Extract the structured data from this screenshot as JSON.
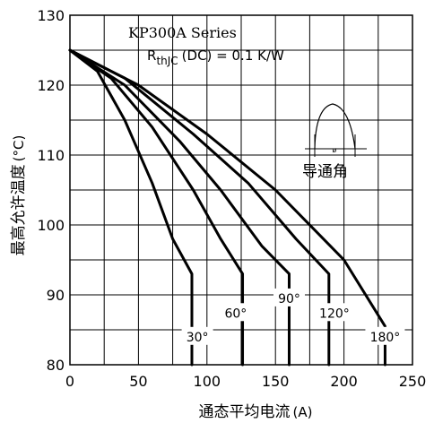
{
  "chart_data": {
    "type": "line",
    "xlabel": "通态平均电流",
    "xlabel_unit": "(A)",
    "ylabel": "最高允许温度",
    "ylabel_unit": "(°C)",
    "xlim": [
      0,
      250
    ],
    "ylim": [
      80,
      130
    ],
    "x_ticks": [
      0,
      50,
      100,
      150,
      200,
      250
    ],
    "y_ticks": [
      80,
      90,
      100,
      110,
      120,
      130
    ],
    "grid": true,
    "annotations": {
      "series_title": "KP300A Series",
      "rth_symbol": "R",
      "rth_sub": "thJC",
      "rth_rest": "(DC) = 0.1 K/W",
      "conduction_angle": "导通角"
    },
    "series": [
      {
        "label": "30°",
        "points": [
          [
            0,
            125
          ],
          [
            20,
            122
          ],
          [
            40,
            115
          ],
          [
            60,
            106
          ],
          [
            75,
            98
          ],
          [
            89,
            93
          ],
          [
            89,
            80
          ]
        ]
      },
      {
        "label": "60°",
        "points": [
          [
            0,
            125
          ],
          [
            30,
            121
          ],
          [
            60,
            114
          ],
          [
            90,
            105
          ],
          [
            110,
            98
          ],
          [
            126,
            93
          ],
          [
            126,
            80
          ]
        ]
      },
      {
        "label": "90°",
        "points": [
          [
            0,
            125
          ],
          [
            40,
            120
          ],
          [
            80,
            112
          ],
          [
            110,
            105
          ],
          [
            140,
            97
          ],
          [
            160,
            93
          ],
          [
            160,
            80
          ]
        ]
      },
      {
        "label": "120°",
        "points": [
          [
            0,
            125
          ],
          [
            40,
            121
          ],
          [
            90,
            113
          ],
          [
            130,
            106
          ],
          [
            165,
            98
          ],
          [
            189,
            93
          ],
          [
            189,
            80
          ]
        ]
      },
      {
        "label": "180°",
        "points": [
          [
            0,
            125
          ],
          [
            50,
            120
          ],
          [
            100,
            113
          ],
          [
            150,
            105
          ],
          [
            200,
            95
          ],
          [
            230,
            85.5
          ],
          [
            230,
            80
          ]
        ]
      }
    ],
    "series_label_pos": [
      [
        93,
        84
      ],
      [
        121,
        87.4
      ],
      [
        160,
        89.5
      ],
      [
        193,
        87.4
      ],
      [
        230,
        84
      ]
    ]
  }
}
